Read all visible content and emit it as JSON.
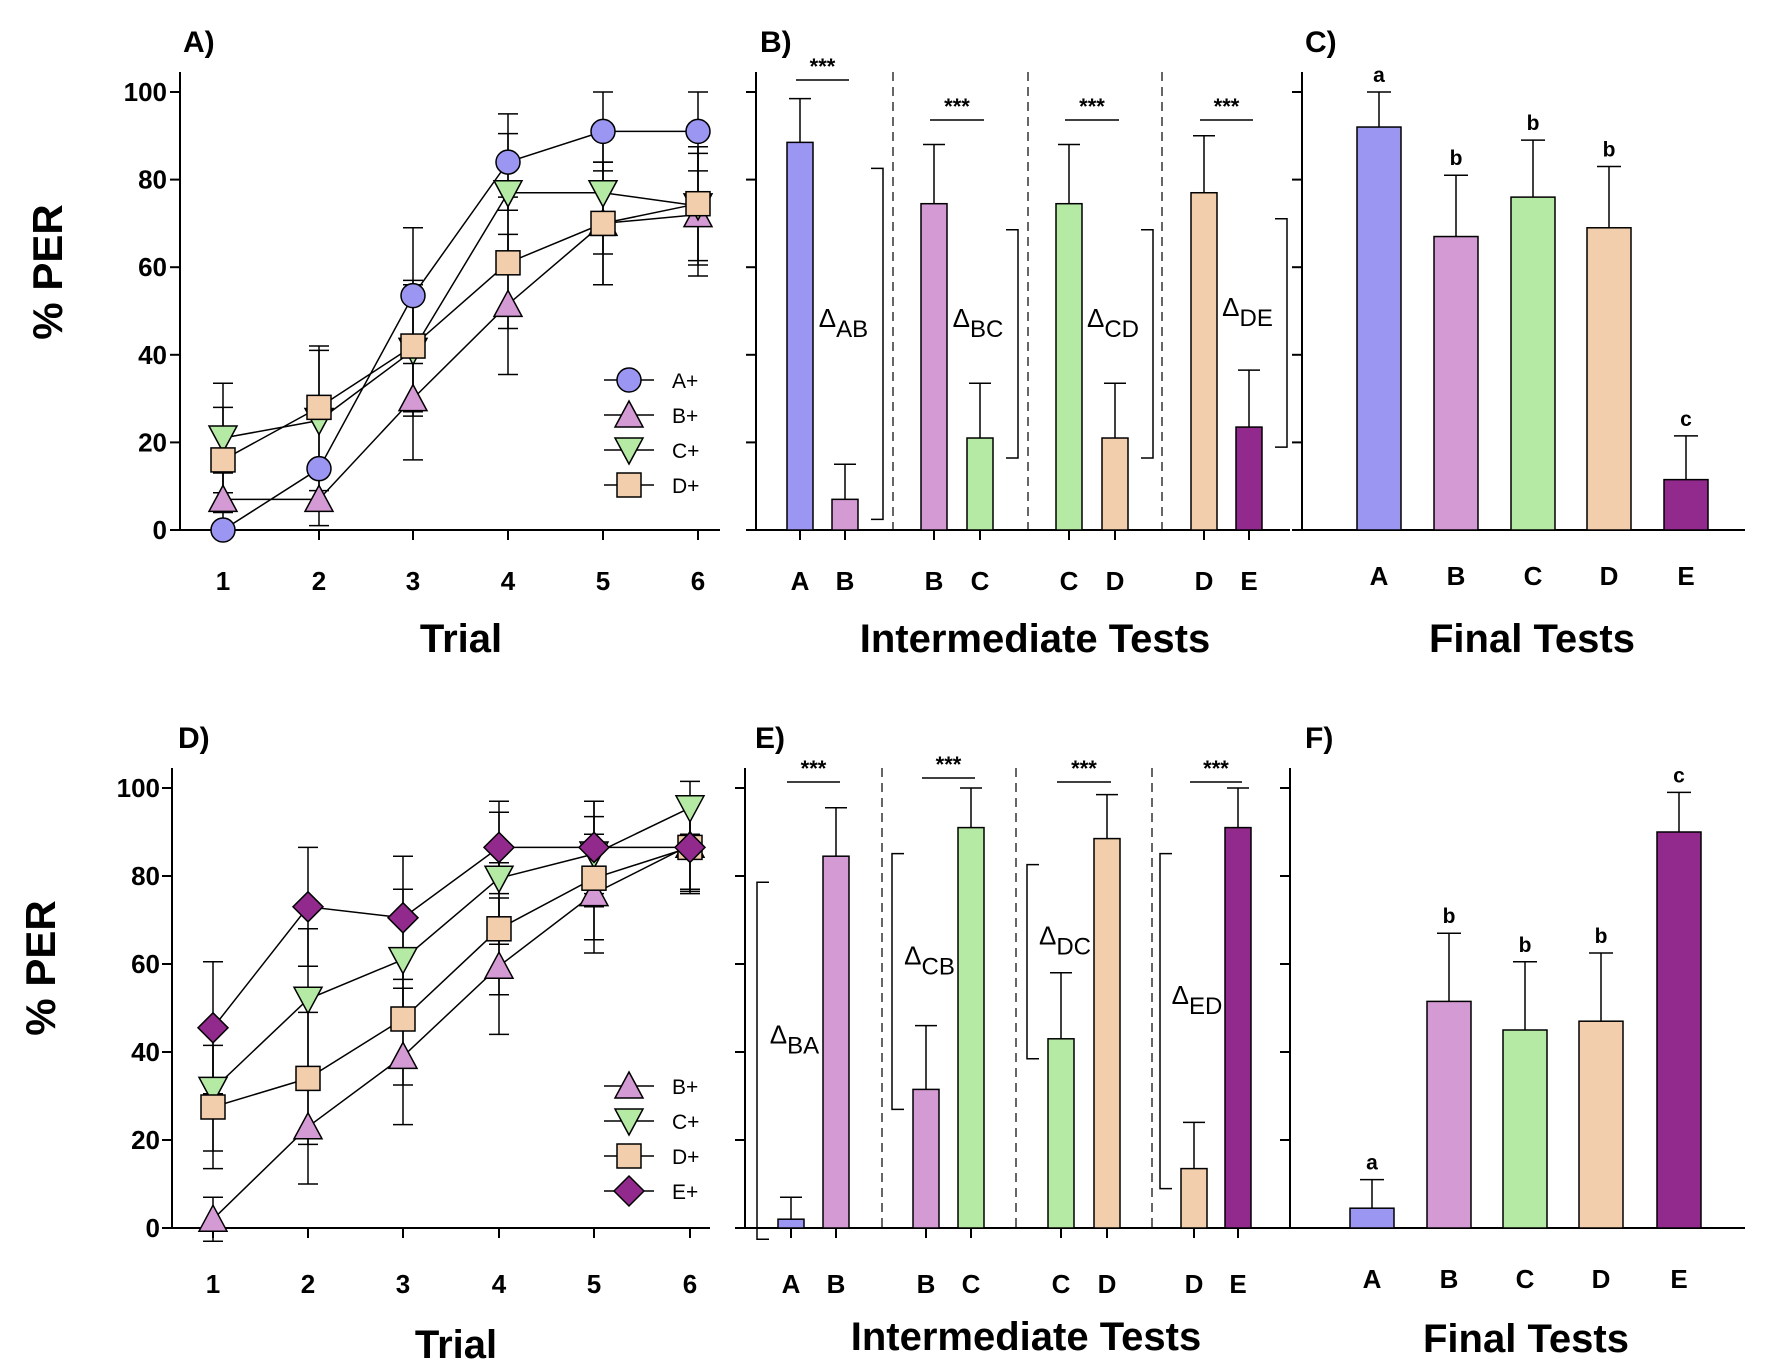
{
  "ylabel": "% PER",
  "colors": {
    "A": "#9b96f2",
    "B": "#d49ad4",
    "C": "#b4eaa4",
    "D": "#f2ceac",
    "E": "#922a8e"
  },
  "chart_data": [
    {
      "type": "line",
      "panel_label": "A)",
      "xlabel": "Trial",
      "ylabel": "% PER",
      "ylim": [
        0,
        100
      ],
      "yticks": [
        "0",
        "20",
        "40",
        "60",
        "80",
        "100"
      ],
      "categories": [
        "1",
        "2",
        "3",
        "4",
        "5",
        "6"
      ],
      "series": [
        {
          "name": "A+",
          "key": "A",
          "marker": "circle",
          "values": [
            0,
            14,
            53.5,
            84,
            91,
            91
          ],
          "errors": [
            0,
            0.8,
            15.5,
            11,
            9,
            9
          ]
        },
        {
          "name": "B+",
          "key": "B",
          "marker": "triangle-up",
          "values": [
            7,
            7,
            30,
            51.5,
            70,
            72
          ],
          "errors": [
            6,
            6,
            14,
            16,
            14,
            14
          ]
        },
        {
          "name": "C+",
          "key": "C",
          "marker": "triangle-down",
          "values": [
            21,
            25,
            41,
            77,
            77,
            74
          ],
          "errors": [
            12.5,
            16,
            15,
            13.5,
            14,
            13.5
          ]
        },
        {
          "name": "D+",
          "key": "D",
          "marker": "square",
          "values": [
            16,
            28,
            42,
            61,
            70,
            74.5
          ],
          "errors": [
            12,
            14,
            15,
            15,
            14,
            13
          ]
        }
      ]
    },
    {
      "type": "bar",
      "panel_label": "B)",
      "xlabel": "Intermediate Tests",
      "ylim": [
        0,
        100
      ],
      "groups": [
        {
          "bars": [
            {
              "cat": "A",
              "value": 88.5,
              "error": 10
            },
            {
              "cat": "B",
              "value": 7,
              "error": 8
            }
          ],
          "sig": "***",
          "delta": "Δ",
          "delta_sub": "AB"
        },
        {
          "bars": [
            {
              "cat": "B",
              "value": 74.5,
              "error": 13.5
            },
            {
              "cat": "C",
              "value": 21,
              "error": 12.5
            }
          ],
          "sig": "***",
          "delta": "Δ",
          "delta_sub": "BC"
        },
        {
          "bars": [
            {
              "cat": "C",
              "value": 74.5,
              "error": 13.5
            },
            {
              "cat": "D",
              "value": 21,
              "error": 12.5
            }
          ],
          "sig": "***",
          "delta": "Δ",
          "delta_sub": "CD"
        },
        {
          "bars": [
            {
              "cat": "D",
              "value": 77,
              "error": 13
            },
            {
              "cat": "E",
              "value": 23.5,
              "error": 13
            }
          ],
          "sig": "***",
          "delta": "Δ",
          "delta_sub": "DE"
        }
      ]
    },
    {
      "type": "bar",
      "panel_label": "C)",
      "xlabel": "Final Tests",
      "ylim": [
        0,
        100
      ],
      "categories": [
        "A",
        "B",
        "C",
        "D",
        "E"
      ],
      "values": [
        92,
        67,
        76,
        69,
        11.5
      ],
      "errors": [
        8,
        14,
        13,
        14,
        10
      ],
      "letters": [
        "a",
        "b",
        "b",
        "b",
        "c"
      ]
    },
    {
      "type": "line",
      "panel_label": "D)",
      "xlabel": "Trial",
      "ylabel": "% PER",
      "ylim": [
        0,
        100
      ],
      "yticks": [
        "0",
        "20",
        "40",
        "60",
        "80",
        "100"
      ],
      "categories": [
        "1",
        "2",
        "3",
        "4",
        "5",
        "6"
      ],
      "series": [
        {
          "name": "B+",
          "key": "B",
          "marker": "triangle-up",
          "values": [
            2,
            23,
            39,
            59.5,
            76,
            87
          ],
          "errors": [
            5,
            13,
            15.5,
            15.5,
            13.5,
            10
          ]
        },
        {
          "name": "C+",
          "key": "C",
          "marker": "triangle-down",
          "values": [
            31.5,
            52,
            61,
            79.5,
            85,
            95.5
          ],
          "errors": [
            14,
            16,
            16,
            15,
            12,
            6
          ]
        },
        {
          "name": "D+",
          "key": "D",
          "marker": "square",
          "values": [
            27.5,
            34,
            47.5,
            68,
            79.5,
            86.5
          ],
          "errors": [
            14,
            15,
            15,
            15,
            14,
            10
          ]
        },
        {
          "name": "E+",
          "key": "E",
          "marker": "diamond",
          "values": [
            45.5,
            73,
            70.5,
            86.5,
            86.5,
            86.5
          ],
          "errors": [
            15,
            13.5,
            14,
            10.5,
            10.5,
            10.5
          ]
        }
      ]
    },
    {
      "type": "bar",
      "panel_label": "E)",
      "xlabel": "Intermediate Tests",
      "ylim": [
        0,
        100
      ],
      "groups": [
        {
          "bars": [
            {
              "cat": "A",
              "value": 2,
              "error": 5
            },
            {
              "cat": "B",
              "value": 84.5,
              "error": 11
            }
          ],
          "sig": "***",
          "delta": "Δ",
          "delta_sub": "BA"
        },
        {
          "bars": [
            {
              "cat": "B",
              "value": 31.5,
              "error": 14.5
            },
            {
              "cat": "C",
              "value": 91,
              "error": 9
            }
          ],
          "sig": "***",
          "delta": "Δ",
          "delta_sub": "CB"
        },
        {
          "bars": [
            {
              "cat": "C",
              "value": 43,
              "error": 15
            },
            {
              "cat": "D",
              "value": 88.5,
              "error": 10
            }
          ],
          "sig": "***",
          "delta": "Δ",
          "delta_sub": "DC"
        },
        {
          "bars": [
            {
              "cat": "D",
              "value": 13.5,
              "error": 10.5
            },
            {
              "cat": "E",
              "value": 91,
              "error": 9
            }
          ],
          "sig": "***",
          "delta": "Δ",
          "delta_sub": "ED"
        }
      ]
    },
    {
      "type": "bar",
      "panel_label": "F)",
      "xlabel": "Final Tests",
      "ylim": [
        0,
        100
      ],
      "categories": [
        "A",
        "B",
        "C",
        "D",
        "E"
      ],
      "values": [
        4.5,
        51.5,
        45,
        47,
        90
      ],
      "errors": [
        6.5,
        15.5,
        15.5,
        15.5,
        9
      ],
      "letters": [
        "a",
        "b",
        "b",
        "b",
        "c"
      ]
    }
  ]
}
